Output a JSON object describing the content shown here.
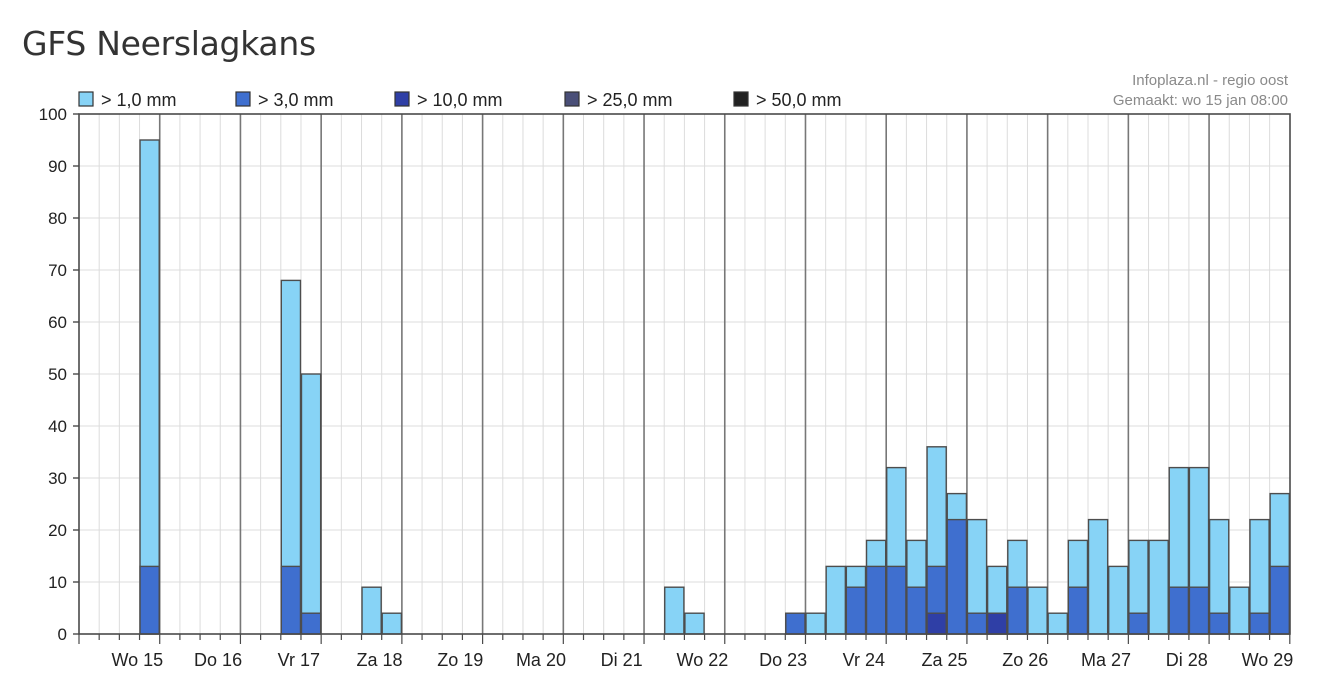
{
  "page": {
    "title": "GFS Neerslagkans"
  },
  "credits": {
    "source": "Infoplaza.nl - regio oost",
    "made": "Gemaakt: wo 15 jan 08:00"
  },
  "colors": {
    "gt1": "#87d3f6",
    "gt3": "#3f6fcf",
    "gt10": "#2f3fa6",
    "gt25": "#4a4f78",
    "gt50": "#222222"
  },
  "chart_data": {
    "type": "bar",
    "stacked": true,
    "ylim": [
      0,
      100
    ],
    "yticks": [
      0,
      10,
      20,
      30,
      40,
      50,
      60,
      70,
      80,
      90,
      100
    ],
    "legend_position": "top",
    "grid": true,
    "day_labels": [
      "Wo 15",
      "Do 16",
      "Vr 17",
      "Za 18",
      "Zo 19",
      "Ma 20",
      "Di 21",
      "Wo 22",
      "Do 23",
      "Vr 24",
      "Za 25",
      "Zo 26",
      "Ma 27",
      "Di 28",
      "Wo 29"
    ],
    "slot_count": 60,
    "series": [
      {
        "name": "> 1,0 mm",
        "color_key": "gt1"
      },
      {
        "name": "> 3,0 mm",
        "color_key": "gt3"
      },
      {
        "name": "> 10,0 mm",
        "color_key": "gt10"
      },
      {
        "name": "> 25,0 mm",
        "color_key": "gt25"
      },
      {
        "name": "> 50,0 mm",
        "color_key": "gt50"
      }
    ],
    "bars": [
      {
        "slot": 3,
        "values": [
          95,
          13,
          0,
          0,
          0
        ]
      },
      {
        "slot": 10,
        "values": [
          68,
          13,
          0,
          0,
          0
        ]
      },
      {
        "slot": 11,
        "values": [
          50,
          4,
          0,
          0,
          0
        ]
      },
      {
        "slot": 14,
        "values": [
          9,
          0,
          0,
          0,
          0
        ]
      },
      {
        "slot": 15,
        "values": [
          4,
          0,
          0,
          0,
          0
        ]
      },
      {
        "slot": 29,
        "values": [
          9,
          0,
          0,
          0,
          0
        ]
      },
      {
        "slot": 30,
        "values": [
          4,
          0,
          0,
          0,
          0
        ]
      },
      {
        "slot": 35,
        "values": [
          4,
          4,
          0,
          0,
          0
        ]
      },
      {
        "slot": 36,
        "values": [
          4,
          0,
          0,
          0,
          0
        ]
      },
      {
        "slot": 37,
        "values": [
          13,
          0,
          0,
          0,
          0
        ]
      },
      {
        "slot": 38,
        "values": [
          13,
          9,
          0,
          0,
          0
        ]
      },
      {
        "slot": 39,
        "values": [
          18,
          13,
          0,
          0,
          0
        ]
      },
      {
        "slot": 40,
        "values": [
          32,
          13,
          0,
          0,
          0
        ]
      },
      {
        "slot": 41,
        "values": [
          18,
          9,
          0,
          0,
          0
        ]
      },
      {
        "slot": 42,
        "values": [
          36,
          13,
          4,
          0,
          0
        ]
      },
      {
        "slot": 43,
        "values": [
          27,
          22,
          0,
          0,
          0
        ]
      },
      {
        "slot": 44,
        "values": [
          22,
          4,
          0,
          0,
          0
        ]
      },
      {
        "slot": 45,
        "values": [
          13,
          4,
          4,
          0,
          0
        ]
      },
      {
        "slot": 46,
        "values": [
          18,
          9,
          0,
          0,
          0
        ]
      },
      {
        "slot": 47,
        "values": [
          9,
          0,
          0,
          0,
          0
        ]
      },
      {
        "slot": 48,
        "values": [
          4,
          0,
          0,
          0,
          0
        ]
      },
      {
        "slot": 49,
        "values": [
          18,
          9,
          0,
          0,
          0
        ]
      },
      {
        "slot": 50,
        "values": [
          22,
          0,
          0,
          0,
          0
        ]
      },
      {
        "slot": 51,
        "values": [
          13,
          0,
          0,
          0,
          0
        ]
      },
      {
        "slot": 52,
        "values": [
          18,
          4,
          0,
          0,
          0
        ]
      },
      {
        "slot": 53,
        "values": [
          18,
          0,
          0,
          0,
          0
        ]
      },
      {
        "slot": 54,
        "values": [
          32,
          9,
          0,
          0,
          0
        ]
      },
      {
        "slot": 55,
        "values": [
          32,
          9,
          0,
          0,
          0
        ]
      },
      {
        "slot": 56,
        "values": [
          22,
          4,
          0,
          0,
          0
        ]
      },
      {
        "slot": 57,
        "values": [
          9,
          0,
          0,
          0,
          0
        ]
      },
      {
        "slot": 58,
        "values": [
          22,
          4,
          0,
          0,
          0
        ]
      },
      {
        "slot": 59,
        "values": [
          27,
          13,
          0,
          0,
          0
        ]
      }
    ]
  }
}
